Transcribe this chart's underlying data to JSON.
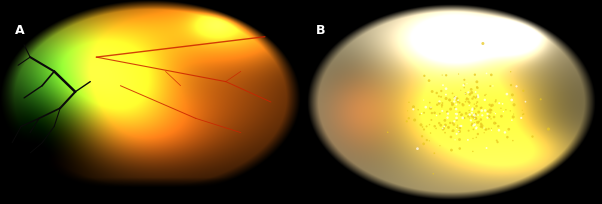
{
  "figsize": [
    6.02,
    2.04
  ],
  "dpi": 100,
  "bg_color": "#000000",
  "label_A": "A",
  "label_B": "B",
  "label_color": "#ffffff",
  "label_fontsize": 9,
  "label_fontweight": "bold"
}
